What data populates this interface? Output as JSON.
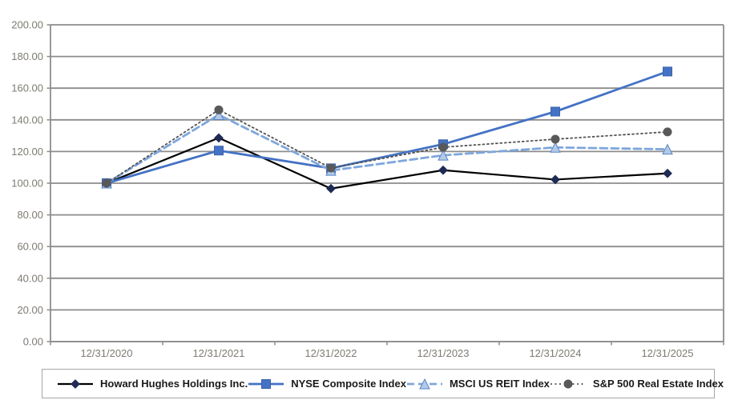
{
  "chart": {
    "colors": {
      "background": "#FFFFFF",
      "grid": "#8C8C8C",
      "axis_label": "#7F7A73",
      "legend_border": "#A6A6A6",
      "legend_text": "#1A1A1A"
    }
  },
  "chart_data": {
    "type": "line",
    "title": "",
    "xlabel": "",
    "ylabel": "",
    "ylim": [
      0,
      200
    ],
    "grid": "horizontal",
    "legend_position": "bottom",
    "categories": [
      "12/31/2020",
      "12/31/2021",
      "12/31/2022",
      "12/31/2023",
      "12/31/2024",
      "12/31/2025"
    ],
    "yticks": [
      {
        "value": 0,
        "label": "0.00"
      },
      {
        "value": 20,
        "label": "20.00"
      },
      {
        "value": 40,
        "label": "40.00"
      },
      {
        "value": 60,
        "label": "60.00"
      },
      {
        "value": 80,
        "label": "80.00"
      },
      {
        "value": 100,
        "label": "100.00"
      },
      {
        "value": 120,
        "label": "120.00"
      },
      {
        "value": 140,
        "label": "140.00"
      },
      {
        "value": 160,
        "label": "160.00"
      },
      {
        "value": 180,
        "label": "180.00"
      },
      {
        "value": 200,
        "label": "200.00"
      }
    ],
    "series": [
      {
        "name": "Howard Hughes Holdings Inc.",
        "values": [
          100.0,
          128.6,
          96.6,
          108.2,
          102.3,
          106.2
        ],
        "color": "#000000",
        "marker": "diamond",
        "marker_fill": "#1F2B54",
        "marker_stroke": "#1F2B54",
        "dash": "",
        "width": 2.2
      },
      {
        "name": "NYSE Composite Index",
        "values": [
          100.0,
          120.6,
          109.4,
          124.6,
          145.2,
          170.5
        ],
        "color": "#4472C4",
        "marker": "square",
        "marker_fill": "#4472C4",
        "marker_stroke": "#3A62A8",
        "dash": "",
        "width": 2.8
      },
      {
        "name": "MSCI US REIT Index",
        "values": [
          100.0,
          143.2,
          108.0,
          117.6,
          122.6,
          121.4
        ],
        "color": "#7EA6DC",
        "marker": "triangle",
        "marker_fill": "#B4C9E6",
        "marker_stroke": "#5585C8",
        "dash": "9 5",
        "width": 2.8
      },
      {
        "name": "S&P 500 Real Estate Index",
        "values": [
          100.0,
          146.3,
          109.6,
          122.7,
          127.8,
          132.4
        ],
        "color": "#545454",
        "marker": "circle",
        "marker_fill": "#595959",
        "marker_stroke": "#595959",
        "dash": "2 3.5",
        "width": 1.8
      }
    ]
  }
}
